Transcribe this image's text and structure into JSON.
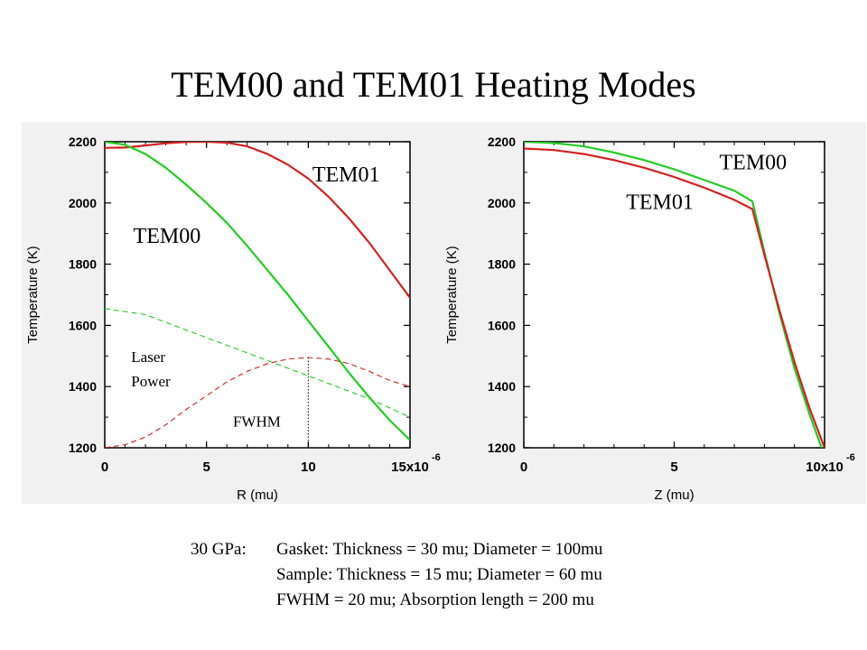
{
  "title": "TEM00 and TEM01 Heating Modes",
  "notes": {
    "pressure": "30 GPa:",
    "line1": "Gasket: Thickness = 30 mu; Diameter = 100mu",
    "line2": "Sample: Thickness = 15 mu; Diameter  = 60 mu",
    "line3": "FWHM = 20 mu; Absorption length = 200 mu"
  },
  "colors": {
    "red": "#d42020",
    "green": "#22cc22",
    "panel": "#f1f1f1"
  },
  "chart_data": [
    {
      "type": "line",
      "xlabel": "R (mu)",
      "ylabel": "Temperature (K)",
      "xlim": [
        0,
        15
      ],
      "ylim": [
        1200,
        2200
      ],
      "xticks": [
        "0",
        "5",
        "10",
        "15x10"
      ],
      "x_exponent": "-6",
      "yticks": [
        1200,
        1400,
        1600,
        1800,
        2000,
        2200
      ],
      "series": [
        {
          "name": "TEM01",
          "color": "#d42020",
          "style": "solid",
          "points": [
            [
              0,
              2180
            ],
            [
              1,
              2181
            ],
            [
              2,
              2188
            ],
            [
              3,
              2195
            ],
            [
              4,
              2199
            ],
            [
              5,
              2200
            ],
            [
              6,
              2197
            ],
            [
              7,
              2185
            ],
            [
              8,
              2160
            ],
            [
              9,
              2125
            ],
            [
              10,
              2080
            ],
            [
              11,
              2020
            ],
            [
              12,
              1950
            ],
            [
              13,
              1870
            ],
            [
              14,
              1780
            ],
            [
              15,
              1690
            ]
          ]
        },
        {
          "name": "TEM00",
          "color": "#22cc22",
          "style": "solid",
          "points": [
            [
              0,
              2200
            ],
            [
              1,
              2190
            ],
            [
              2,
              2160
            ],
            [
              3,
              2115
            ],
            [
              4,
              2060
            ],
            [
              5,
              2000
            ],
            [
              6,
              1935
            ],
            [
              7,
              1860
            ],
            [
              8,
              1780
            ],
            [
              9,
              1700
            ],
            [
              10,
              1615
            ],
            [
              11,
              1530
            ],
            [
              12,
              1445
            ],
            [
              13,
              1365
            ],
            [
              14,
              1290
            ],
            [
              15,
              1225
            ]
          ]
        },
        {
          "color": "#22cc22",
          "style": "dashed",
          "points": [
            [
              0,
              1655
            ],
            [
              1,
              1645
            ],
            [
              2,
              1635
            ],
            [
              3,
              1610
            ],
            [
              4,
              1585
            ],
            [
              5,
              1560
            ],
            [
              6,
              1535
            ],
            [
              7,
              1510
            ],
            [
              8,
              1485
            ],
            [
              9,
              1460
            ],
            [
              10,
              1435
            ],
            [
              11,
              1410
            ],
            [
              12,
              1385
            ],
            [
              13,
              1360
            ],
            [
              14,
              1330
            ],
            [
              15,
              1300
            ]
          ]
        },
        {
          "color": "#d42020",
          "style": "dashed",
          "points": [
            [
              0,
              1200
            ],
            [
              1,
              1210
            ],
            [
              2,
              1235
            ],
            [
              3,
              1275
            ],
            [
              4,
              1325
            ],
            [
              5,
              1370
            ],
            [
              6,
              1415
            ],
            [
              7,
              1450
            ],
            [
              8,
              1475
            ],
            [
              9,
              1490
            ],
            [
              10,
              1495
            ],
            [
              11,
              1490
            ],
            [
              12,
              1475
            ],
            [
              13,
              1450
            ],
            [
              14,
              1420
            ],
            [
              15,
              1400
            ]
          ]
        }
      ],
      "annotations": [
        {
          "text": "TEM01",
          "x": 10.2,
          "y": 2070
        },
        {
          "text": "TEM00",
          "x": 1.4,
          "y": 1870
        },
        {
          "text": "Laser",
          "x": 1.3,
          "y": 1480
        },
        {
          "text": "Power",
          "x": 1.3,
          "y": 1400
        },
        {
          "text": "FWHM",
          "x": 6.3,
          "y": 1270
        }
      ],
      "fwhm_marker_x": 10
    },
    {
      "type": "line",
      "xlabel": "Z (mu)",
      "ylabel": "Temperature (K)",
      "xlim": [
        0,
        10
      ],
      "ylim": [
        1200,
        2200
      ],
      "xticks": [
        "0",
        "5",
        "10x10"
      ],
      "x_exponent": "-6",
      "yticks": [
        1200,
        1400,
        1600,
        1800,
        2000,
        2200
      ],
      "series": [
        {
          "name": "TEM00",
          "color": "#22cc22",
          "style": "solid",
          "points": [
            [
              0,
              2200
            ],
            [
              1,
              2196
            ],
            [
              2,
              2185
            ],
            [
              3,
              2165
            ],
            [
              4,
              2140
            ],
            [
              5,
              2110
            ],
            [
              6,
              2075
            ],
            [
              7,
              2040
            ],
            [
              7.6,
              2005
            ],
            [
              8,
              1840
            ],
            [
              8.5,
              1640
            ],
            [
              9,
              1460
            ],
            [
              9.5,
              1310
            ],
            [
              9.9,
              1200
            ]
          ]
        },
        {
          "name": "TEM01",
          "color": "#d42020",
          "style": "solid",
          "points": [
            [
              0,
              2178
            ],
            [
              1,
              2173
            ],
            [
              2,
              2160
            ],
            [
              3,
              2140
            ],
            [
              4,
              2115
            ],
            [
              5,
              2085
            ],
            [
              6,
              2050
            ],
            [
              7,
              2010
            ],
            [
              7.6,
              1980
            ],
            [
              8,
              1830
            ],
            [
              8.5,
              1650
            ],
            [
              9,
              1480
            ],
            [
              9.5,
              1330
            ],
            [
              10,
              1200
            ]
          ]
        }
      ],
      "annotations": [
        {
          "text": "TEM00",
          "x": 6.5,
          "y": 2110
        },
        {
          "text": "TEM01",
          "x": 3.4,
          "y": 1980
        }
      ]
    }
  ]
}
